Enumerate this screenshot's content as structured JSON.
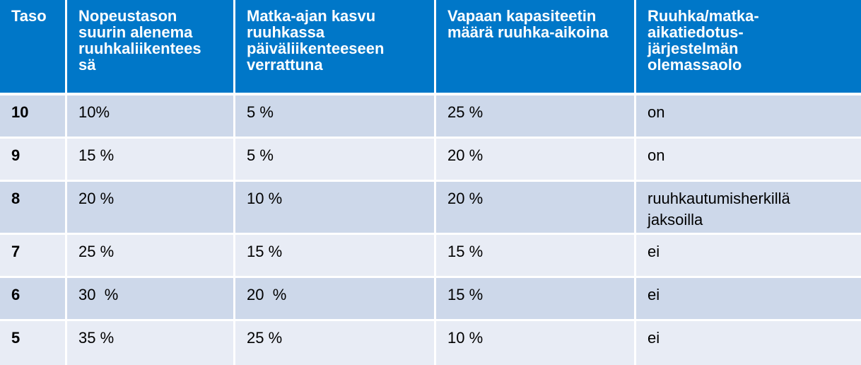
{
  "table": {
    "headers": [
      "Taso",
      "Nopeustason suurin alenema ruuhkaliikentees sä",
      "Matka-ajan kasvu ruuhkassa päiväliikenteeseen verrattuna",
      "Vapaan kapasiteetin määrä ruuhka-aikoina",
      "Ruuhka/matka-aikatiedotus-järjestelmän olemassaolo"
    ],
    "rows": [
      [
        "10",
        "10%",
        "5 %",
        "25 %",
        "on"
      ],
      [
        "9",
        "15 %",
        "5 %",
        "20 %",
        "on"
      ],
      [
        "8",
        "20 %",
        "10 %",
        "20 %",
        "ruuhkautumisherkillä jaksoilla"
      ],
      [
        "7",
        "25 %",
        "15 %",
        "15 %",
        "ei"
      ],
      [
        "6",
        "30  %",
        "20  %",
        "15 %",
        "ei"
      ],
      [
        "5",
        "35 %",
        "25 %",
        "10 %",
        "ei"
      ]
    ]
  },
  "colors": {
    "header_bg": "#0077c8",
    "row_dark": "#cdd8ea",
    "row_light": "#e8ecf5"
  }
}
